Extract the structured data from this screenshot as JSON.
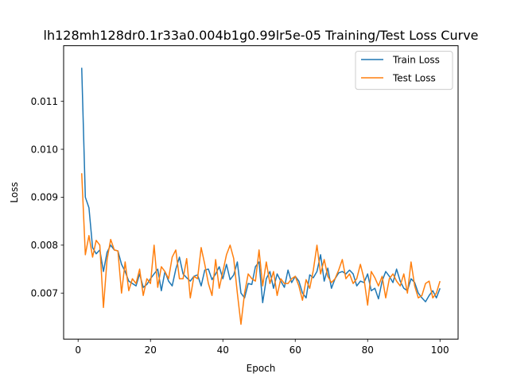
{
  "chart_data": {
    "type": "line",
    "title": "lh128mh128dr0.1r33a0.004b1g0.99lr5e-05 Training/Test Loss Curve",
    "xlabel": "Epoch",
    "ylabel": "Loss",
    "xlim": [
      -4,
      105
    ],
    "ylim": [
      0.00604,
      0.01216
    ],
    "xticks": [
      0,
      20,
      40,
      60,
      80,
      100
    ],
    "xtick_labels": [
      "0",
      "20",
      "40",
      "60",
      "80",
      "100"
    ],
    "yticks": [
      0.007,
      0.008,
      0.009,
      0.01,
      0.011
    ],
    "ytick_labels": [
      "0.007",
      "0.008",
      "0.009",
      "0.010",
      "0.011"
    ],
    "grid": false,
    "legend_position": "top-right",
    "x": [
      1,
      2,
      3,
      4,
      5,
      6,
      7,
      8,
      9,
      10,
      11,
      12,
      13,
      14,
      15,
      16,
      17,
      18,
      19,
      20,
      21,
      22,
      23,
      24,
      25,
      26,
      27,
      28,
      29,
      30,
      31,
      32,
      33,
      34,
      35,
      36,
      37,
      38,
      39,
      40,
      41,
      42,
      43,
      44,
      45,
      46,
      47,
      48,
      49,
      50,
      51,
      52,
      53,
      54,
      55,
      56,
      57,
      58,
      59,
      60,
      61,
      62,
      63,
      64,
      65,
      66,
      67,
      68,
      69,
      70,
      71,
      72,
      73,
      74,
      75,
      76,
      77,
      78,
      79,
      80,
      81,
      82,
      83,
      84,
      85,
      86,
      87,
      88,
      89,
      90,
      91,
      92,
      93,
      94,
      95,
      96,
      97,
      98,
      99,
      100
    ],
    "series": [
      {
        "name": "Train Loss",
        "color": "#1f77b4",
        "values": [
          0.0117,
          0.009,
          0.00878,
          0.00795,
          0.00782,
          0.0079,
          0.00745,
          0.00785,
          0.008,
          0.0079,
          0.00788,
          0.0076,
          0.00745,
          0.00725,
          0.0072,
          0.00715,
          0.0074,
          0.00712,
          0.00718,
          0.0073,
          0.0074,
          0.0075,
          0.00705,
          0.00745,
          0.00725,
          0.00715,
          0.0075,
          0.00775,
          0.0074,
          0.00732,
          0.00725,
          0.00735,
          0.00738,
          0.00715,
          0.00748,
          0.0075,
          0.00728,
          0.0074,
          0.00755,
          0.0073,
          0.0076,
          0.00728,
          0.00738,
          0.00765,
          0.007,
          0.0069,
          0.0072,
          0.00718,
          0.00755,
          0.00765,
          0.0068,
          0.0073,
          0.00745,
          0.0071,
          0.0074,
          0.00725,
          0.00712,
          0.00748,
          0.00722,
          0.00735,
          0.00725,
          0.007,
          0.0069,
          0.00738,
          0.00732,
          0.00745,
          0.0078,
          0.00725,
          0.00752,
          0.0071,
          0.0073,
          0.00742,
          0.00745,
          0.0074,
          0.00748,
          0.0074,
          0.00715,
          0.00725,
          0.00722,
          0.0074,
          0.00705,
          0.0071,
          0.00688,
          0.00725,
          0.00745,
          0.00735,
          0.00722,
          0.0075,
          0.00725,
          0.0071,
          0.00705,
          0.0073,
          0.00722,
          0.007,
          0.0069,
          0.00682,
          0.00695,
          0.00705,
          0.0069,
          0.0071
        ]
      },
      {
        "name": "Test Loss",
        "color": "#ff7f0e",
        "values": [
          0.0095,
          0.0078,
          0.0082,
          0.00775,
          0.0081,
          0.008,
          0.0067,
          0.0077,
          0.00812,
          0.0079,
          0.00788,
          0.007,
          0.00765,
          0.00705,
          0.0073,
          0.0072,
          0.0075,
          0.00695,
          0.0073,
          0.0072,
          0.008,
          0.00712,
          0.00755,
          0.00745,
          0.0073,
          0.00775,
          0.0079,
          0.0073,
          0.0073,
          0.00772,
          0.0069,
          0.00735,
          0.0073,
          0.00795,
          0.0076,
          0.0072,
          0.00695,
          0.0077,
          0.0071,
          0.00745,
          0.0078,
          0.008,
          0.00772,
          0.007,
          0.00635,
          0.007,
          0.0074,
          0.0073,
          0.00725,
          0.0079,
          0.00715,
          0.00765,
          0.0072,
          0.00745,
          0.00695,
          0.0073,
          0.0072,
          0.0072,
          0.0073,
          0.00735,
          0.00715,
          0.00685,
          0.00728,
          0.0071,
          0.00748,
          0.008,
          0.0074,
          0.0077,
          0.00735,
          0.00722,
          0.0073,
          0.00748,
          0.0077,
          0.0073,
          0.0074,
          0.0072,
          0.0073,
          0.0076,
          0.0073,
          0.00675,
          0.00745,
          0.00732,
          0.00715,
          0.00735,
          0.0069,
          0.0073,
          0.0074,
          0.00725,
          0.00715,
          0.0074,
          0.007,
          0.00765,
          0.00715,
          0.0069,
          0.00695,
          0.0072,
          0.00725,
          0.0069,
          0.007,
          0.00725
        ]
      }
    ]
  }
}
